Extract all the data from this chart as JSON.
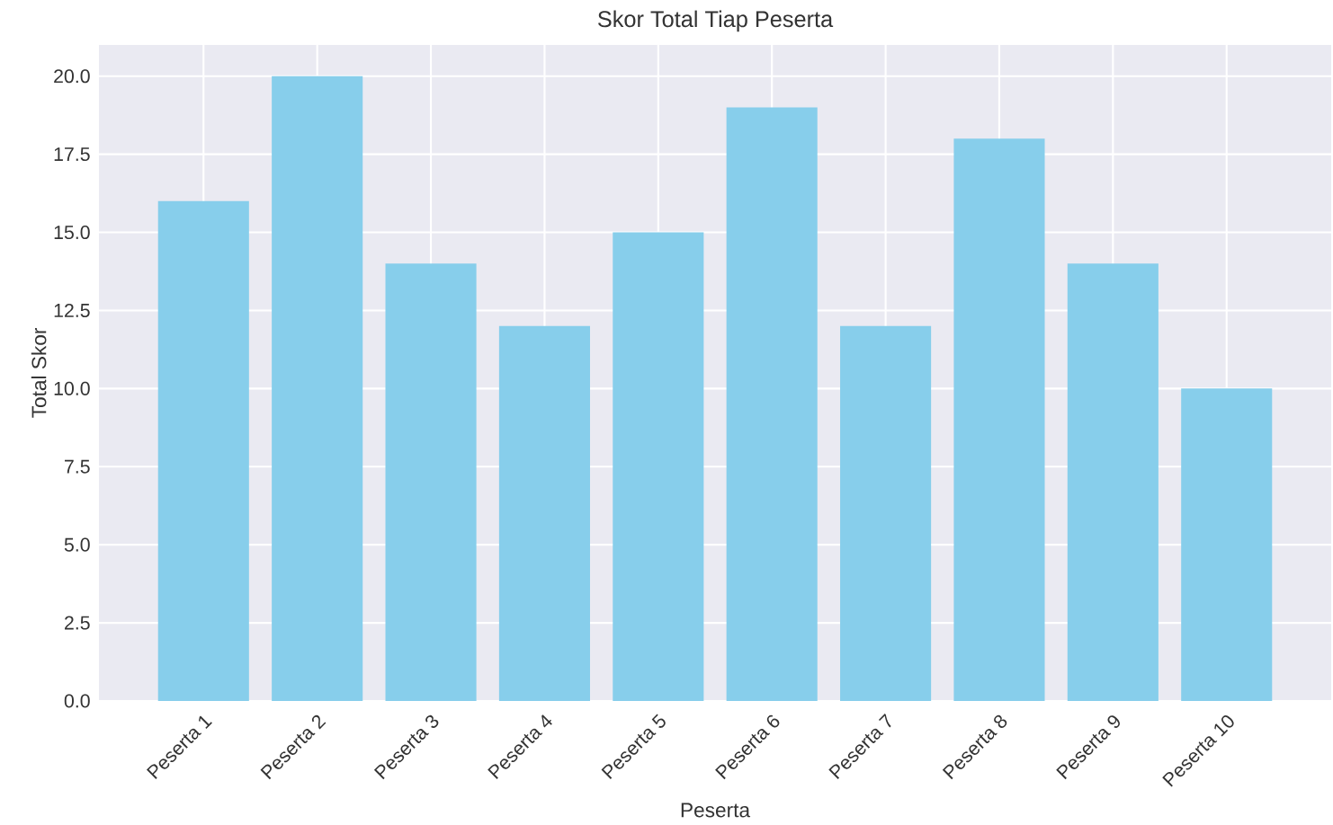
{
  "chart_data": {
    "type": "bar",
    "title": "Skor Total Tiap Peserta",
    "xlabel": "Peserta",
    "ylabel": "Total Skor",
    "categories": [
      "Peserta 1",
      "Peserta 2",
      "Peserta 3",
      "Peserta 4",
      "Peserta 5",
      "Peserta 6",
      "Peserta 7",
      "Peserta 8",
      "Peserta 9",
      "Peserta 10"
    ],
    "values": [
      16,
      20,
      14,
      12,
      15,
      19,
      12,
      18,
      14,
      10
    ],
    "color": "#87ceeb",
    "ylim": [
      0,
      21
    ],
    "yticks": [
      {
        "value": 0,
        "label": "0.0"
      },
      2.5,
      {
        "value": 5,
        "label": "5.0"
      },
      7.5,
      {
        "value": 10,
        "label": "10.0"
      },
      12.5,
      {
        "value": 15,
        "label": "15.0"
      },
      17.5,
      {
        "value": 20,
        "label": "20.0"
      }
    ],
    "grid": true
  }
}
